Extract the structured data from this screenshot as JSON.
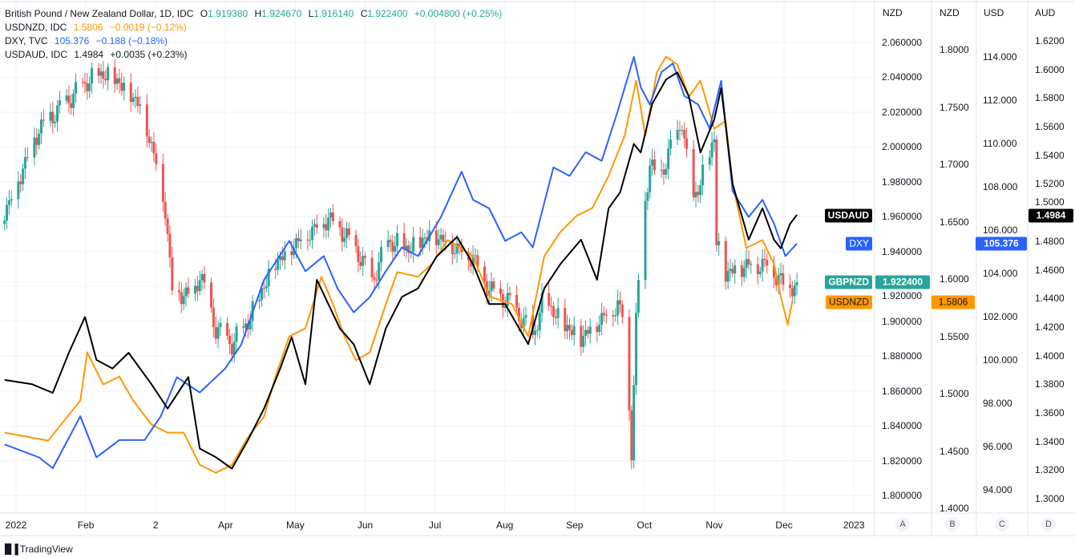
{
  "legend": {
    "main": {
      "title": "British Pound / New Zealand Dollar, 1D, IDC",
      "open_label": "O",
      "open": "1.919380",
      "high_label": "H",
      "high": "1.924670",
      "low_label": "L",
      "low": "1.916140",
      "close_label": "C",
      "close": "1.922400",
      "change": "+0.004800 (+0.25%)"
    },
    "usdnzd": {
      "title": "USDNZD, IDC",
      "value": "1.5806",
      "change": "−0.0019 (−0.12%)"
    },
    "dxy": {
      "title": "DXY, TVC",
      "value": "105.376",
      "change": "−0.188 (−0.18%)"
    },
    "usdaud": {
      "title": "USDAUD, IDC",
      "value": "1.4984",
      "change": "+0.0035 (+0.23%)"
    }
  },
  "axes": {
    "A": {
      "currency": "NZD",
      "button": "A",
      "ticks": [
        "2.060000",
        "2.040000",
        "2.020000",
        "2.000000",
        "1.980000",
        "1.960000",
        "1.940000",
        "1.920000",
        "1.900000",
        "1.880000",
        "1.860000",
        "1.840000",
        "1.820000",
        "1.800000"
      ]
    },
    "B": {
      "currency": "NZD",
      "button": "B",
      "ticks": [
        "1.8000",
        "1.7500",
        "1.7000",
        "1.6500",
        "1.6000",
        "1.5500",
        "1.5000",
        "1.4500",
        "1.4000"
      ]
    },
    "C": {
      "currency": "USD",
      "button": "C",
      "ticks": [
        "114.000",
        "112.000",
        "110.000",
        "108.000",
        "106.000",
        "104.000",
        "102.000",
        "100.000",
        "98.000",
        "96.000",
        "94.000"
      ]
    },
    "D": {
      "currency": "AUD",
      "button": "D",
      "ticks": [
        "1.6200",
        "1.6000",
        "1.5800",
        "1.5600",
        "1.5400",
        "1.5200",
        "1.5000",
        "1.4800",
        "1.4600",
        "1.4400",
        "1.4200",
        "1.4000",
        "1.3800",
        "1.3600",
        "1.3400",
        "1.3200",
        "1.3000"
      ]
    }
  },
  "time_labels": [
    "2022",
    "Feb",
    "2",
    "Apr",
    "May",
    "Jun",
    "Jul",
    "Aug",
    "Sep",
    "Oct",
    "Nov",
    "Dec",
    "2023"
  ],
  "tags": {
    "usdaud": {
      "name": "USDAUD",
      "value": "1.4984"
    },
    "dxy": {
      "name": "DXY",
      "value": "105.376"
    },
    "gbpnzd": {
      "name": "GBPNZD",
      "value": "1.922400"
    },
    "usdnzd": {
      "name": "USDNZD",
      "value": "1.5806"
    }
  },
  "colors": {
    "up": "#26a69a",
    "down": "#ef5350",
    "usdnzd": "#ff9800",
    "dxy": "#2962ff",
    "usdaud": "#000000",
    "grid": "#f0f3fa"
  },
  "footer": {
    "brand": "TradingView",
    "logo_text": "17"
  },
  "chart_data": {
    "type": "line",
    "title": "British Pound / New Zealand Dollar, 1D, IDC",
    "x_unit": "day of year 2022",
    "xlim": [
      -4,
      365
    ],
    "series": [
      {
        "name": "GBPNZD",
        "style": "candlestick",
        "axis": "A",
        "ylim": [
          1.8,
          2.06
        ],
        "points": [
          [
            -4,
            1.9625
          ],
          [
            11,
            2.011
          ],
          [
            32,
            2.038
          ],
          [
            39,
            2.043
          ],
          [
            46,
            2.038
          ],
          [
            55,
            2.025
          ],
          [
            62,
            1.992
          ],
          [
            66,
            1.965
          ],
          [
            69,
            1.919
          ],
          [
            78,
            1.914
          ],
          [
            81,
            1.928
          ],
          [
            88,
            1.896
          ],
          [
            95,
            1.887
          ],
          [
            102,
            1.9
          ],
          [
            113,
            1.933
          ],
          [
            123,
            1.946
          ],
          [
            137,
            1.96
          ],
          [
            144,
            1.951
          ],
          [
            151,
            1.937
          ],
          [
            156,
            1.923
          ],
          [
            163,
            1.946
          ],
          [
            172,
            1.942
          ],
          [
            182,
            1.951
          ],
          [
            200,
            1.937
          ],
          [
            207,
            1.919
          ],
          [
            217,
            1.91
          ],
          [
            226,
            1.891
          ],
          [
            231,
            1.914
          ],
          [
            238,
            1.9
          ],
          [
            247,
            1.891
          ],
          [
            254,
            1.9
          ],
          [
            263,
            1.91
          ],
          [
            266,
            1.9
          ],
          [
            269,
            1.827
          ],
          [
            271,
            1.9
          ],
          [
            273,
            1.946
          ],
          [
            277,
            1.992
          ],
          [
            280,
            1.979
          ],
          [
            284,
            1.992
          ],
          [
            291,
            2.015
          ],
          [
            295,
            1.969
          ],
          [
            299,
            1.979
          ],
          [
            305,
            2.006
          ],
          [
            306,
            1.946
          ],
          [
            310,
            1.928
          ],
          [
            319,
            1.933
          ],
          [
            329,
            1.933
          ],
          [
            336,
            1.919
          ],
          [
            341,
            1.9224
          ]
        ],
        "spike_low": [
          269,
          1.815
        ]
      },
      {
        "name": "USDNZD",
        "style": "line",
        "axis": "B",
        "ylim": [
          1.4,
          1.8
        ],
        "points": [
          [
            -4,
            1.466
          ],
          [
            15,
            1.459
          ],
          [
            29,
            1.494
          ],
          [
            32,
            1.536
          ],
          [
            39,
            1.508
          ],
          [
            46,
            1.515
          ],
          [
            52,
            1.494
          ],
          [
            60,
            1.473
          ],
          [
            67,
            1.466
          ],
          [
            74,
            1.466
          ],
          [
            81,
            1.438
          ],
          [
            88,
            1.431
          ],
          [
            95,
            1.438
          ],
          [
            102,
            1.462
          ],
          [
            109,
            1.48
          ],
          [
            114,
            1.515
          ],
          [
            120,
            1.55
          ],
          [
            127,
            1.557
          ],
          [
            134,
            1.602
          ],
          [
            139,
            1.578
          ],
          [
            144,
            1.55
          ],
          [
            149,
            1.529
          ],
          [
            155,
            1.536
          ],
          [
            162,
            1.578
          ],
          [
            167,
            1.606
          ],
          [
            176,
            1.602
          ],
          [
            182,
            1.613
          ],
          [
            189,
            1.634
          ],
          [
            200,
            1.62
          ],
          [
            207,
            1.585
          ],
          [
            217,
            1.578
          ],
          [
            224,
            1.55
          ],
          [
            231,
            1.62
          ],
          [
            238,
            1.641
          ],
          [
            245,
            1.655
          ],
          [
            252,
            1.662
          ],
          [
            259,
            1.69
          ],
          [
            266,
            1.725
          ],
          [
            271,
            1.773
          ],
          [
            275,
            1.725
          ],
          [
            280,
            1.78
          ],
          [
            284,
            1.794
          ],
          [
            289,
            1.787
          ],
          [
            294,
            1.759
          ],
          [
            299,
            1.773
          ],
          [
            305,
            1.731
          ],
          [
            310,
            1.738
          ],
          [
            313,
            1.683
          ],
          [
            319,
            1.627
          ],
          [
            326,
            1.634
          ],
          [
            331,
            1.613
          ],
          [
            334,
            1.585
          ],
          [
            337,
            1.56
          ],
          [
            339,
            1.5806
          ]
        ]
      },
      {
        "name": "DXY",
        "style": "line",
        "axis": "C",
        "ylim": [
          94,
          114
        ],
        "points": [
          [
            -4,
            96.1
          ],
          [
            11,
            95.5
          ],
          [
            17,
            95.0
          ],
          [
            29,
            97.4
          ],
          [
            36,
            95.5
          ],
          [
            46,
            96.3
          ],
          [
            57,
            96.3
          ],
          [
            64,
            97.4
          ],
          [
            71,
            99.2
          ],
          [
            81,
            98.5
          ],
          [
            92,
            99.6
          ],
          [
            99,
            100.7
          ],
          [
            109,
            103.7
          ],
          [
            120,
            105.5
          ],
          [
            127,
            104.1
          ],
          [
            135,
            104.8
          ],
          [
            141,
            103.3
          ],
          [
            148,
            102.2
          ],
          [
            155,
            102.9
          ],
          [
            162,
            104.1
          ],
          [
            169,
            105.2
          ],
          [
            176,
            104.8
          ],
          [
            186,
            106.6
          ],
          [
            195,
            108.7
          ],
          [
            200,
            107.4
          ],
          [
            207,
            107.0
          ],
          [
            214,
            105.5
          ],
          [
            221,
            105.9
          ],
          [
            226,
            105.2
          ],
          [
            235,
            108.9
          ],
          [
            242,
            108.5
          ],
          [
            249,
            109.6
          ],
          [
            256,
            109.2
          ],
          [
            263,
            111.5
          ],
          [
            270,
            114.0
          ],
          [
            273,
            112.6
          ],
          [
            277,
            111.8
          ],
          [
            282,
            113.3
          ],
          [
            287,
            113.7
          ],
          [
            292,
            112.2
          ],
          [
            298,
            111.8
          ],
          [
            303,
            110.7
          ],
          [
            308,
            112.9
          ],
          [
            313,
            107.8
          ],
          [
            320,
            106.6
          ],
          [
            326,
            107.4
          ],
          [
            331,
            106.3
          ],
          [
            336,
            104.8
          ],
          [
            341,
            105.376
          ]
        ]
      },
      {
        "name": "USDAUD",
        "style": "line",
        "axis": "D",
        "ylim": [
          1.3,
          1.62
        ],
        "points": [
          [
            -4,
            1.383
          ],
          [
            8,
            1.38
          ],
          [
            17,
            1.374
          ],
          [
            24,
            1.402
          ],
          [
            31,
            1.427
          ],
          [
            36,
            1.397
          ],
          [
            43,
            1.391
          ],
          [
            50,
            1.402
          ],
          [
            60,
            1.38
          ],
          [
            67,
            1.363
          ],
          [
            76,
            1.385
          ],
          [
            81,
            1.335
          ],
          [
            88,
            1.329
          ],
          [
            95,
            1.321
          ],
          [
            102,
            1.341
          ],
          [
            109,
            1.363
          ],
          [
            116,
            1.391
          ],
          [
            121,
            1.413
          ],
          [
            127,
            1.38
          ],
          [
            132,
            1.453
          ],
          [
            137,
            1.436
          ],
          [
            142,
            1.419
          ],
          [
            148,
            1.408
          ],
          [
            155,
            1.38
          ],
          [
            162,
            1.419
          ],
          [
            169,
            1.441
          ],
          [
            176,
            1.447
          ],
          [
            184,
            1.469
          ],
          [
            193,
            1.483
          ],
          [
            200,
            1.464
          ],
          [
            207,
            1.436
          ],
          [
            214,
            1.436
          ],
          [
            224,
            1.408
          ],
          [
            231,
            1.447
          ],
          [
            238,
            1.464
          ],
          [
            247,
            1.481
          ],
          [
            254,
            1.453
          ],
          [
            259,
            1.503
          ],
          [
            264,
            1.514
          ],
          [
            270,
            1.548
          ],
          [
            273,
            1.542
          ],
          [
            278,
            1.576
          ],
          [
            284,
            1.593
          ],
          [
            289,
            1.598
          ],
          [
            294,
            1.581
          ],
          [
            299,
            1.542
          ],
          [
            305,
            1.565
          ],
          [
            308,
            1.587
          ],
          [
            313,
            1.52
          ],
          [
            320,
            1.481
          ],
          [
            326,
            1.503
          ],
          [
            331,
            1.481
          ],
          [
            334,
            1.475
          ],
          [
            338,
            1.492
          ],
          [
            341,
            1.4984
          ]
        ]
      }
    ],
    "grid": true,
    "legend_position": "top-left"
  }
}
